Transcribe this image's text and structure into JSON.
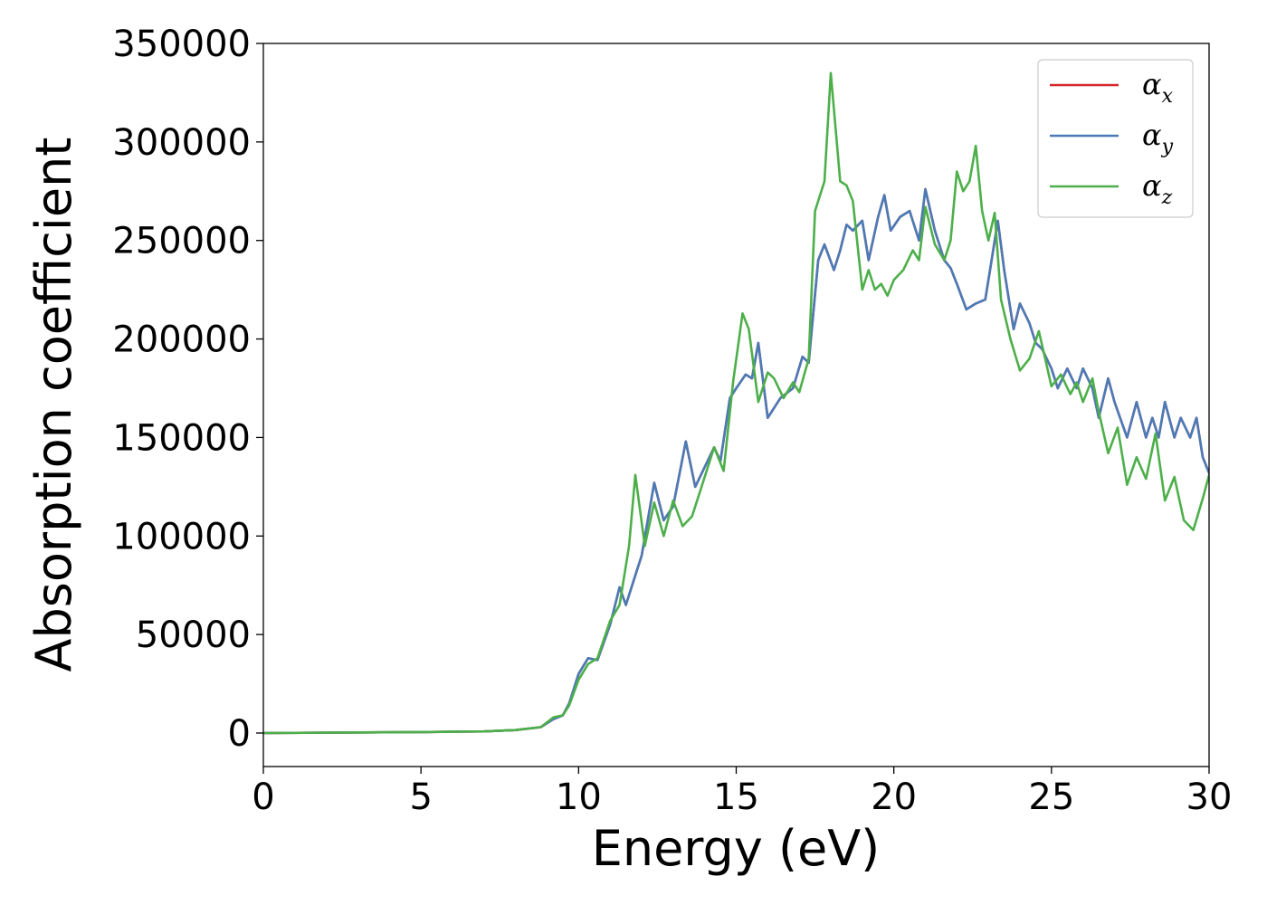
{
  "chart_data": {
    "type": "line",
    "xlabel": "Energy (eV)",
    "ylabel": "Absorption coefficient",
    "xlim": [
      0,
      30
    ],
    "ylim": [
      -17000,
      350000
    ],
    "x_ticks": [
      "0",
      "5",
      "10",
      "15",
      "20",
      "25",
      "30"
    ],
    "y_ticks": [
      "0",
      "50000",
      "100000",
      "150000",
      "200000",
      "250000",
      "300000",
      "350000"
    ],
    "grid": false,
    "legend_position": "top-right",
    "series": [
      {
        "name": "α",
        "subscript": "x",
        "color": "#d62728",
        "x": [
          0,
          5,
          7,
          8,
          8.8,
          9.2,
          9.5,
          9.7,
          10,
          10.3,
          10.6,
          11,
          11.3,
          11.5,
          11.8,
          12,
          12.4,
          12.7,
          13,
          13.4,
          13.7,
          14,
          14.3,
          14.5,
          14.8,
          15,
          15.3,
          15.5,
          15.7,
          16,
          16.4,
          16.8,
          17.1,
          17.3,
          17.6,
          17.8,
          18.1,
          18.3,
          18.5,
          18.7,
          19,
          19.2,
          19.5,
          19.7,
          19.9,
          20.2,
          20.5,
          20.8,
          21,
          21.3,
          21.6,
          21.8,
          22,
          22.3,
          22.6,
          22.9,
          23.1,
          23.3,
          23.5,
          23.8,
          24,
          24.3,
          24.5,
          24.7,
          25,
          25.2,
          25.5,
          25.8,
          26,
          26.3,
          26.5,
          26.8,
          27,
          27.4,
          27.7,
          28,
          28.2,
          28.4,
          28.6,
          28.9,
          29.1,
          29.4,
          29.6,
          29.8,
          30
        ],
        "values": [
          0,
          500,
          800,
          1500,
          3000,
          7000,
          9000,
          15000,
          30000,
          38000,
          37000,
          55000,
          74000,
          65000,
          80000,
          90000,
          127000,
          108000,
          115000,
          148000,
          125000,
          135000,
          145000,
          138000,
          170000,
          175000,
          182000,
          180000,
          198000,
          160000,
          170000,
          175000,
          191000,
          188000,
          240000,
          248000,
          235000,
          245000,
          258000,
          255000,
          260000,
          240000,
          262000,
          273000,
          255000,
          262000,
          265000,
          250000,
          276000,
          255000,
          240000,
          236000,
          228000,
          215000,
          218000,
          220000,
          240000,
          260000,
          235000,
          205000,
          218000,
          208000,
          198000,
          195000,
          185000,
          175000,
          185000,
          175000,
          185000,
          175000,
          160000,
          180000,
          168000,
          150000,
          168000,
          150000,
          160000,
          150000,
          168000,
          150000,
          160000,
          150000,
          160000,
          140000,
          132000
        ]
      },
      {
        "name": "α",
        "subscript": "y",
        "color": "#4a7bb7",
        "x": [
          0,
          5,
          7,
          8,
          8.8,
          9.2,
          9.5,
          9.7,
          10,
          10.3,
          10.6,
          11,
          11.3,
          11.5,
          11.8,
          12,
          12.4,
          12.7,
          13,
          13.4,
          13.7,
          14,
          14.3,
          14.5,
          14.8,
          15,
          15.3,
          15.5,
          15.7,
          16,
          16.4,
          16.8,
          17.1,
          17.3,
          17.6,
          17.8,
          18.1,
          18.3,
          18.5,
          18.7,
          19,
          19.2,
          19.5,
          19.7,
          19.9,
          20.2,
          20.5,
          20.8,
          21,
          21.3,
          21.6,
          21.8,
          22,
          22.3,
          22.6,
          22.9,
          23.1,
          23.3,
          23.5,
          23.8,
          24,
          24.3,
          24.5,
          24.7,
          25,
          25.2,
          25.5,
          25.8,
          26,
          26.3,
          26.5,
          26.8,
          27,
          27.4,
          27.7,
          28,
          28.2,
          28.4,
          28.6,
          28.9,
          29.1,
          29.4,
          29.6,
          29.8,
          30
        ],
        "values": [
          0,
          500,
          800,
          1500,
          3000,
          7000,
          9000,
          15000,
          30000,
          38000,
          37000,
          55000,
          74000,
          65000,
          80000,
          90000,
          127000,
          108000,
          115000,
          148000,
          125000,
          135000,
          145000,
          138000,
          170000,
          175000,
          182000,
          180000,
          198000,
          160000,
          170000,
          175000,
          191000,
          188000,
          240000,
          248000,
          235000,
          245000,
          258000,
          255000,
          260000,
          240000,
          262000,
          273000,
          255000,
          262000,
          265000,
          250000,
          276000,
          255000,
          240000,
          236000,
          228000,
          215000,
          218000,
          220000,
          240000,
          260000,
          235000,
          205000,
          218000,
          208000,
          198000,
          195000,
          185000,
          175000,
          185000,
          175000,
          185000,
          175000,
          160000,
          180000,
          168000,
          150000,
          168000,
          150000,
          160000,
          150000,
          168000,
          150000,
          160000,
          150000,
          160000,
          140000,
          132000
        ]
      },
      {
        "name": "α",
        "subscript": "z",
        "color": "#4daf4a",
        "x": [
          0,
          5,
          7,
          8,
          8.8,
          9.2,
          9.5,
          9.7,
          10,
          10.3,
          10.6,
          11,
          11.3,
          11.6,
          11.8,
          12.1,
          12.4,
          12.7,
          13,
          13.3,
          13.6,
          13.9,
          14.3,
          14.6,
          14.9,
          15.2,
          15.4,
          15.7,
          16,
          16.2,
          16.5,
          16.8,
          17,
          17.3,
          17.5,
          17.8,
          18,
          18.3,
          18.5,
          18.7,
          19,
          19.2,
          19.4,
          19.6,
          19.8,
          20,
          20.3,
          20.6,
          20.8,
          21,
          21.3,
          21.6,
          21.8,
          22,
          22.2,
          22.4,
          22.6,
          22.8,
          23,
          23.2,
          23.4,
          23.7,
          24,
          24.3,
          24.6,
          24.8,
          25,
          25.3,
          25.6,
          25.8,
          26,
          26.3,
          26.5,
          26.8,
          27.1,
          27.4,
          27.7,
          28,
          28.3,
          28.6,
          28.9,
          29.2,
          29.5,
          29.8,
          30
        ],
        "values": [
          0,
          500,
          800,
          1500,
          3000,
          8000,
          9000,
          14000,
          27000,
          35000,
          38000,
          57000,
          65000,
          95000,
          131000,
          95000,
          117000,
          100000,
          118000,
          105000,
          110000,
          125000,
          145000,
          133000,
          178000,
          213000,
          205000,
          168000,
          183000,
          180000,
          170000,
          178000,
          173000,
          190000,
          265000,
          280000,
          335000,
          280000,
          278000,
          270000,
          225000,
          235000,
          225000,
          228000,
          222000,
          230000,
          235000,
          245000,
          240000,
          267000,
          248000,
          240000,
          250000,
          285000,
          275000,
          280000,
          298000,
          265000,
          250000,
          264000,
          220000,
          200000,
          184000,
          190000,
          204000,
          190000,
          176000,
          182000,
          172000,
          178000,
          168000,
          180000,
          163000,
          142000,
          155000,
          126000,
          140000,
          129000,
          152000,
          118000,
          130000,
          108000,
          103000,
          119000,
          131000
        ]
      }
    ]
  }
}
